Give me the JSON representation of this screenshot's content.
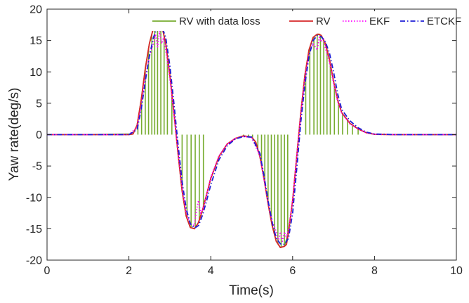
{
  "chart_data": {
    "type": "line",
    "title": "",
    "xlabel": "Time(s)",
    "ylabel": "Yaw rate(deg/s)",
    "xlim": [
      0,
      10
    ],
    "ylim": [
      -20,
      20
    ],
    "xticks": [
      0,
      2,
      4,
      6,
      8,
      10
    ],
    "yticks": [
      -20,
      -15,
      -10,
      -5,
      0,
      5,
      10,
      15,
      20
    ],
    "grid": false,
    "legend": {
      "placement": "top-right",
      "orientation": "horizontal"
    },
    "series": [
      {
        "name": "RV with data loss",
        "color": "#77AC30",
        "style": "solid",
        "x": [
          0,
          1,
          2.1,
          2.2,
          2.3,
          2.4,
          2.5,
          2.6,
          2.7,
          2.8,
          2.9,
          3.0,
          3.1,
          3.2,
          3.3,
          3.4,
          3.5,
          3.6,
          3.7,
          3.8,
          3.9,
          4.0,
          4.2,
          4.4,
          4.6,
          4.8,
          5.0,
          5.1,
          5.2,
          5.3,
          5.4,
          5.5,
          5.6,
          5.7,
          5.8,
          5.9,
          6.0,
          6.1,
          6.2,
          6.3,
          6.4,
          6.5,
          6.6,
          6.7,
          6.8,
          6.9,
          7.0,
          7.1,
          7.2,
          7.4,
          7.6,
          7.8,
          8.0,
          8.5,
          10
        ],
        "y": [
          0,
          0,
          0.1,
          1.5,
          5.5,
          10.5,
          14.5,
          17,
          18,
          17.5,
          14.5,
          9.5,
          3.5,
          -3,
          -9,
          -13,
          -14.8,
          -15,
          -14,
          -12,
          -9.5,
          -7,
          -3.5,
          -1.5,
          -0.6,
          -0.2,
          -0.4,
          -1.2,
          -3.5,
          -7,
          -11,
          -14.5,
          -17,
          -18,
          -17.8,
          -15.5,
          -10.5,
          -3.5,
          3.5,
          9.5,
          13.5,
          15.5,
          16,
          15.8,
          14.5,
          12,
          8.5,
          5.5,
          3.5,
          1.8,
          0.9,
          0.3,
          0.05,
          0,
          0
        ],
        "loss_times": [
          2.22,
          2.31,
          2.4,
          2.48,
          2.56,
          2.63,
          2.7,
          2.78,
          2.86,
          2.94,
          3.05,
          3.3,
          3.42,
          3.52,
          3.62,
          3.72,
          3.82,
          4.8,
          4.92,
          5.02,
          5.15,
          5.24,
          5.32,
          5.4,
          5.48,
          5.56,
          5.64,
          5.72,
          5.8,
          5.88,
          6.32,
          6.42,
          6.52,
          6.6,
          6.68,
          6.76,
          6.84,
          6.92,
          7.02,
          7.12,
          7.22,
          7.34,
          7.46,
          7.6
        ]
      },
      {
        "name": "RV",
        "color": "#D62728",
        "style": "solid",
        "x": [
          0,
          1,
          2.0,
          2.1,
          2.2,
          2.3,
          2.4,
          2.5,
          2.6,
          2.7,
          2.75,
          2.8,
          2.9,
          3.0,
          3.1,
          3.2,
          3.3,
          3.4,
          3.5,
          3.6,
          3.7,
          3.8,
          3.9,
          4.0,
          4.2,
          4.4,
          4.6,
          4.8,
          5.0,
          5.1,
          5.2,
          5.3,
          5.4,
          5.5,
          5.6,
          5.7,
          5.8,
          5.85,
          5.9,
          6.0,
          6.1,
          6.2,
          6.3,
          6.4,
          6.5,
          6.6,
          6.65,
          6.7,
          6.8,
          6.9,
          7.0,
          7.1,
          7.2,
          7.4,
          7.6,
          7.8,
          8.0,
          8.5,
          10
        ],
        "y": [
          0,
          0,
          0,
          0.1,
          1.5,
          5.5,
          10.5,
          14.5,
          17,
          18,
          18.1,
          17.5,
          14.5,
          9.5,
          3.5,
          -3,
          -9,
          -13,
          -14.8,
          -15,
          -14,
          -12,
          -9.5,
          -7,
          -3.5,
          -1.5,
          -0.6,
          -0.2,
          -0.4,
          -1.2,
          -3.5,
          -7,
          -11,
          -14.5,
          -17,
          -18,
          -17.8,
          -17.5,
          -15.5,
          -10.5,
          -3.5,
          3.5,
          9.5,
          13.5,
          15.5,
          16,
          16,
          15.8,
          14.5,
          12,
          8.5,
          5.5,
          3.5,
          1.8,
          0.9,
          0.3,
          0.05,
          0,
          0
        ]
      },
      {
        "name": "EKF",
        "color": "#FF00FF",
        "style": "dotted",
        "x": [
          0,
          1,
          2.0,
          2.2,
          2.3,
          2.4,
          2.5,
          2.6,
          2.65,
          2.7,
          2.75,
          2.8,
          2.85,
          2.9,
          3.0,
          3.1,
          3.2,
          3.3,
          3.4,
          3.5,
          3.6,
          3.65,
          3.7,
          3.75,
          3.8,
          3.9,
          4.0,
          4.2,
          4.4,
          4.6,
          4.8,
          5.0,
          5.2,
          5.4,
          5.5,
          5.6,
          5.65,
          5.7,
          5.75,
          5.8,
          5.85,
          5.9,
          6.0,
          6.1,
          6.2,
          6.3,
          6.4,
          6.5,
          6.6,
          6.65,
          6.7,
          6.75,
          6.8,
          6.9,
          7.0,
          7.1,
          7.2,
          7.4,
          7.6,
          7.8,
          8.0,
          8.5,
          10
        ],
        "y": [
          0,
          0,
          0,
          1.2,
          4.5,
          9,
          12.5,
          14.5,
          16,
          14,
          16.5,
          14.5,
          15.5,
          13.5,
          9,
          3.2,
          -2.5,
          -8.5,
          -12.5,
          -14.2,
          -14.5,
          -12,
          -10.5,
          -12.5,
          -12,
          -9.5,
          -6.8,
          -3.4,
          -1.5,
          -0.6,
          -0.3,
          -0.5,
          -3.4,
          -10.8,
          -13.8,
          -15.5,
          -17,
          -15.5,
          -17,
          -15.5,
          -16.5,
          -15,
          -10.5,
          -3.5,
          3.2,
          9,
          12.8,
          14.5,
          13.5,
          15.5,
          14.8,
          15.5,
          13.8,
          11.5,
          8.2,
          5.3,
          3.4,
          1.7,
          0.9,
          0.3,
          0.05,
          0,
          0
        ]
      },
      {
        "name": "ETCKF",
        "color": "#1F1FD6",
        "style": "dashdot",
        "x": [
          0,
          1,
          2.0,
          2.2,
          2.3,
          2.4,
          2.5,
          2.6,
          2.7,
          2.8,
          2.9,
          3.0,
          3.1,
          3.2,
          3.3,
          3.4,
          3.5,
          3.6,
          3.7,
          3.8,
          3.9,
          4.0,
          4.2,
          4.4,
          4.6,
          4.8,
          5.0,
          5.2,
          5.3,
          5.4,
          5.5,
          5.6,
          5.7,
          5.8,
          5.9,
          6.0,
          6.1,
          6.2,
          6.3,
          6.4,
          6.5,
          6.6,
          6.7,
          6.8,
          6.9,
          7.0,
          7.1,
          7.2,
          7.4,
          7.6,
          7.8,
          8.0,
          8.5,
          10
        ],
        "y": [
          0,
          0,
          0,
          0.8,
          4,
          8.5,
          12.5,
          15.5,
          17.2,
          17.3,
          15.5,
          11,
          5,
          -1.5,
          -7.5,
          -11.8,
          -14.2,
          -14.9,
          -14.5,
          -12.8,
          -10.5,
          -8,
          -4,
          -1.8,
          -0.7,
          -0.3,
          -0.4,
          -3,
          -6.5,
          -10.5,
          -14,
          -16.5,
          -17.4,
          -17.5,
          -16.5,
          -12.5,
          -5.5,
          2,
          8,
          12.5,
          15,
          15.8,
          15.6,
          14.8,
          13,
          10,
          6.5,
          4,
          2.2,
          1.1,
          0.4,
          0.1,
          0,
          0
        ]
      }
    ]
  }
}
